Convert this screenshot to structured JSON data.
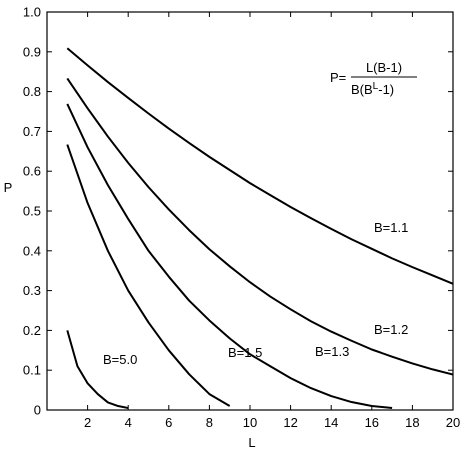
{
  "chart_data": {
    "type": "line",
    "xlabel": "L",
    "ylabel": "P",
    "xlim": [
      0,
      20
    ],
    "ylim": [
      0,
      1
    ],
    "xticks": [
      2,
      4,
      6,
      8,
      10,
      12,
      14,
      16,
      18,
      20
    ],
    "yticks": [
      0,
      0.1,
      0.2,
      0.3,
      0.4,
      0.5,
      0.6,
      0.7,
      0.8,
      0.9,
      {
        "value": 1,
        "label": "1.0"
      }
    ],
    "formula": {
      "lhs": "P=",
      "numerator": "L(B-1)",
      "denominator_base": "B(B",
      "denominator_exp": "L",
      "denominator_tail": "-1)"
    },
    "series": [
      {
        "name": "B=1.1",
        "color": "#000000",
        "x": [
          1,
          2,
          3,
          4,
          5,
          6,
          7,
          8,
          9,
          10,
          11,
          12,
          13,
          14,
          15,
          16,
          17,
          18,
          19,
          20
        ],
        "values": [
          0.909,
          0.866,
          0.824,
          0.784,
          0.745,
          0.707,
          0.671,
          0.636,
          0.603,
          0.57,
          0.54,
          0.51,
          0.482,
          0.455,
          0.429,
          0.405,
          0.381,
          0.359,
          0.338,
          0.317
        ]
      },
      {
        "name": "B=1.2",
        "color": "#000000",
        "x": [
          1,
          2,
          3,
          4,
          5,
          6,
          7,
          8,
          9,
          10,
          11,
          12,
          13,
          14,
          15,
          16,
          17,
          18,
          19,
          20
        ],
        "values": [
          0.833,
          0.758,
          0.687,
          0.621,
          0.56,
          0.504,
          0.452,
          0.404,
          0.361,
          0.321,
          0.285,
          0.253,
          0.223,
          0.197,
          0.174,
          0.152,
          0.134,
          0.117,
          0.102,
          0.089
        ]
      },
      {
        "name": "B=1.3",
        "color": "#000000",
        "x": [
          1,
          2,
          3,
          4,
          5,
          6,
          7,
          8,
          9,
          10,
          11,
          12,
          13,
          14,
          15,
          16,
          17
        ],
        "values": [
          0.769,
          0.66,
          0.565,
          0.48,
          0.4,
          0.335,
          0.275,
          0.225,
          0.18,
          0.14,
          0.11,
          0.08,
          0.055,
          0.035,
          0.02,
          0.01,
          0.005
        ]
      },
      {
        "name": "B=1.5",
        "color": "#000000",
        "x": [
          1,
          2,
          3,
          4,
          5,
          6,
          7,
          8,
          9
        ],
        "values": [
          0.667,
          0.52,
          0.4,
          0.3,
          0.22,
          0.15,
          0.09,
          0.04,
          0.01
        ]
      },
      {
        "name": "B=5.0",
        "color": "#000000",
        "x": [
          1,
          1.5,
          2,
          2.5,
          3,
          3.5,
          4
        ],
        "values": [
          0.2,
          0.11,
          0.067,
          0.04,
          0.019,
          0.01,
          0.005
        ]
      }
    ]
  }
}
